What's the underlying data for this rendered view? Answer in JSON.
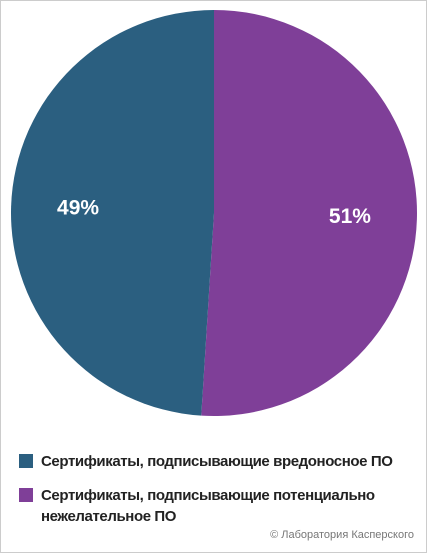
{
  "chart_data": {
    "type": "pie",
    "categories": [
      "Сертификаты, подписывающие вредоносное ПО",
      "Сертификаты, подписывающие потенциально нежелательное ПО"
    ],
    "values": [
      49,
      51
    ],
    "value_labels": [
      "49%",
      "51%"
    ],
    "colors": [
      "#2b5f80",
      "#7f3f98"
    ],
    "credit": "© Лаборатория Касперского"
  }
}
